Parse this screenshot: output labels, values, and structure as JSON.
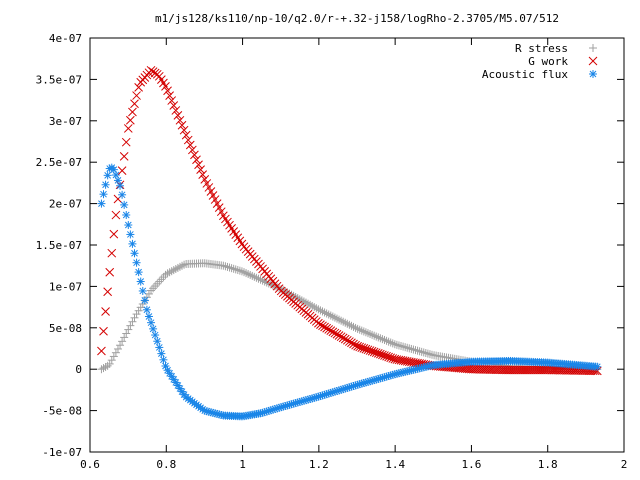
{
  "chart_data": {
    "type": "scatter",
    "title": "m1/js128/ks110/np-10/q2.0/r-+.32-j158/logRho-2.3705/M5.07/512",
    "xlim": [
      0.6,
      2.0
    ],
    "ylim": [
      -1e-07,
      4e-07
    ],
    "x_ticks": [
      0.6,
      0.8,
      1.0,
      1.2,
      1.4,
      1.6,
      1.8,
      2.0
    ],
    "x_tick_labels": [
      "0.6",
      "0.8",
      "1",
      "1.2",
      "1.4",
      "1.6",
      "1.8",
      "2"
    ],
    "y_ticks": [
      -1e-07,
      -5e-08,
      0,
      5e-08,
      1e-07,
      1.5e-07,
      2e-07,
      2.5e-07,
      3e-07,
      3.5e-07,
      4e-07
    ],
    "y_tick_labels": [
      "-1e-07",
      "-5e-08",
      "0",
      "5e-08",
      "1e-07",
      "1.5e-07",
      "2e-07",
      "2.5e-07",
      "3e-07",
      "3.5e-07",
      "4e-07"
    ],
    "legend_position": "top-right",
    "grid": false,
    "series": [
      {
        "name": "R stress",
        "marker": "plus",
        "color": "#a0a0a0",
        "x": [
          0.63,
          0.65,
          0.68,
          0.72,
          0.76,
          0.8,
          0.85,
          0.9,
          0.95,
          1.0,
          1.1,
          1.2,
          1.3,
          1.4,
          1.5,
          1.6,
          1.7,
          1.8,
          1.93
        ],
        "y": [
          0.0,
          5e-09,
          3e-08,
          6.5e-08,
          9.5e-08,
          1.15e-07,
          1.27e-07,
          1.28e-07,
          1.25e-07,
          1.18e-07,
          9.7e-08,
          7.2e-08,
          4.9e-08,
          3e-08,
          1.7e-08,
          9e-09,
          4e-09,
          2e-09,
          0.0
        ]
      },
      {
        "name": "G work",
        "marker": "cross",
        "color": "#d40000",
        "x": [
          0.63,
          0.65,
          0.67,
          0.7,
          0.73,
          0.76,
          0.78,
          0.8,
          0.85,
          0.9,
          0.95,
          1.0,
          1.1,
          1.2,
          1.3,
          1.4,
          1.5,
          1.6,
          1.7,
          1.8,
          1.93
        ],
        "y": [
          2.2e-08,
          1.1e-07,
          1.95e-07,
          2.9e-07,
          3.45e-07,
          3.61e-07,
          3.55e-07,
          3.4e-07,
          2.85e-07,
          2.3e-07,
          1.85e-07,
          1.5e-07,
          9.5e-08,
          5.5e-08,
          2.8e-08,
          1.2e-08,
          4e-09,
          0.0,
          -1e-09,
          -1e-09,
          -2e-09
        ]
      },
      {
        "name": "Acoustic flux",
        "marker": "star",
        "color": "#1a86e8",
        "x": [
          0.63,
          0.65,
          0.66,
          0.68,
          0.7,
          0.75,
          0.8,
          0.85,
          0.9,
          0.95,
          1.0,
          1.05,
          1.1,
          1.2,
          1.3,
          1.4,
          1.5,
          1.6,
          1.7,
          1.8,
          1.93
        ],
        "y": [
          2e-07,
          2.42e-07,
          2.44e-07,
          2.2e-07,
          1.75e-07,
          7e-08,
          1e-09,
          -3.3e-08,
          -5e-08,
          -5.6e-08,
          -5.7e-08,
          -5.3e-08,
          -4.6e-08,
          -3.3e-08,
          -1.9e-08,
          -6e-09,
          5e-09,
          9e-09,
          1e-08,
          8e-09,
          3e-09
        ]
      }
    ]
  }
}
